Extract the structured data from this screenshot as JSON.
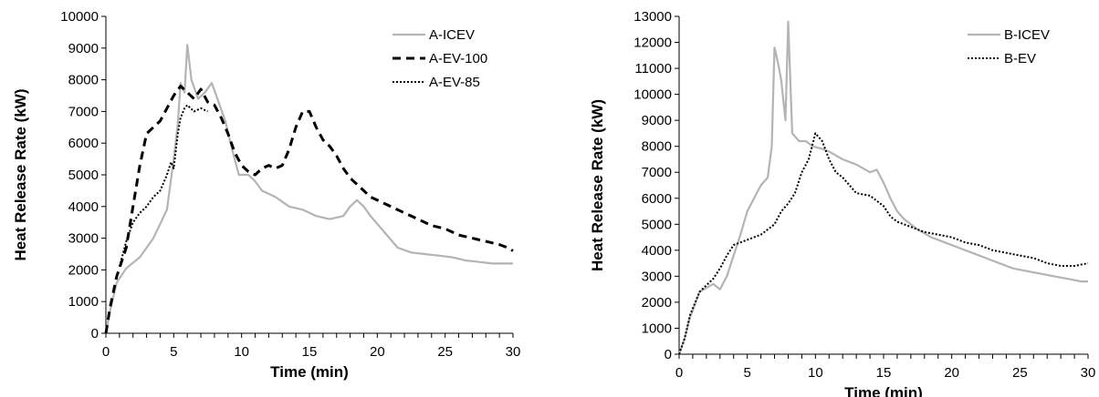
{
  "chart_data": [
    {
      "type": "line",
      "xlabel": "Time (min)",
      "ylabel": "Heat Release Rate (kW)",
      "xlim": [
        0,
        30
      ],
      "ylim": [
        0,
        10000
      ],
      "xticks": [
        0,
        5,
        10,
        15,
        20,
        25,
        30
      ],
      "yticks": [
        0,
        1000,
        2000,
        3000,
        4000,
        5000,
        6000,
        7000,
        8000,
        9000,
        10000
      ],
      "grid": false,
      "legend_position": "top-right",
      "series": [
        {
          "name": "A-ICEV",
          "style": "solid",
          "color": "#b4b4b4",
          "points": [
            [
              0,
              0
            ],
            [
              0.3,
              700
            ],
            [
              0.8,
              1600
            ],
            [
              1.5,
              2050
            ],
            [
              2.5,
              2400
            ],
            [
              3.5,
              3000
            ],
            [
              4.5,
              3900
            ],
            [
              5.0,
              5500
            ],
            [
              5.3,
              6600
            ],
            [
              5.5,
              7900
            ],
            [
              5.8,
              7600
            ],
            [
              6.0,
              9100
            ],
            [
              6.3,
              8000
            ],
            [
              6.8,
              7400
            ],
            [
              7.3,
              7600
            ],
            [
              7.8,
              7900
            ],
            [
              8.3,
              7300
            ],
            [
              8.8,
              6700
            ],
            [
              9.3,
              5800
            ],
            [
              9.8,
              5000
            ],
            [
              10.5,
              5000
            ],
            [
              11.0,
              4800
            ],
            [
              11.5,
              4500
            ],
            [
              12.5,
              4300
            ],
            [
              13.5,
              4000
            ],
            [
              14.5,
              3900
            ],
            [
              15.5,
              3700
            ],
            [
              16.5,
              3600
            ],
            [
              17.5,
              3700
            ],
            [
              18.0,
              4000
            ],
            [
              18.5,
              4200
            ],
            [
              19.0,
              4000
            ],
            [
              19.5,
              3700
            ],
            [
              20.5,
              3200
            ],
            [
              21.5,
              2700
            ],
            [
              22.5,
              2550
            ],
            [
              23.5,
              2500
            ],
            [
              24.5,
              2450
            ],
            [
              25.5,
              2400
            ],
            [
              26.5,
              2300
            ],
            [
              27.5,
              2250
            ],
            [
              28.5,
              2200
            ],
            [
              29.5,
              2200
            ],
            [
              30,
              2200
            ]
          ]
        },
        {
          "name": "A-EV-100",
          "style": "dashed",
          "color": "#000000",
          "points": [
            [
              0,
              0
            ],
            [
              0.3,
              800
            ],
            [
              0.8,
              1800
            ],
            [
              1.5,
              2700
            ],
            [
              2.0,
              4000
            ],
            [
              2.5,
              5300
            ],
            [
              3.0,
              6300
            ],
            [
              3.5,
              6500
            ],
            [
              4.0,
              6700
            ],
            [
              4.5,
              7100
            ],
            [
              5.0,
              7500
            ],
            [
              5.5,
              7800
            ],
            [
              6.0,
              7600
            ],
            [
              6.5,
              7400
            ],
            [
              7.0,
              7700
            ],
            [
              7.5,
              7300
            ],
            [
              8.0,
              7200
            ],
            [
              8.5,
              6800
            ],
            [
              9.0,
              6300
            ],
            [
              9.5,
              5700
            ],
            [
              10.0,
              5300
            ],
            [
              10.5,
              5100
            ],
            [
              11.0,
              5000
            ],
            [
              11.5,
              5200
            ],
            [
              12.0,
              5300
            ],
            [
              12.5,
              5200
            ],
            [
              13.0,
              5300
            ],
            [
              13.5,
              5800
            ],
            [
              14.0,
              6500
            ],
            [
              14.5,
              7000
            ],
            [
              15.0,
              7000
            ],
            [
              15.5,
              6500
            ],
            [
              16.0,
              6100
            ],
            [
              16.5,
              5900
            ],
            [
              17.0,
              5600
            ],
            [
              17.5,
              5200
            ],
            [
              18.0,
              4900
            ],
            [
              18.5,
              4700
            ],
            [
              19.0,
              4500
            ],
            [
              19.5,
              4300
            ],
            [
              20.0,
              4200
            ],
            [
              21.0,
              4000
            ],
            [
              22.0,
              3800
            ],
            [
              23.0,
              3600
            ],
            [
              24.0,
              3400
            ],
            [
              25.0,
              3300
            ],
            [
              26.0,
              3100
            ],
            [
              27.0,
              3000
            ],
            [
              28.0,
              2900
            ],
            [
              29.0,
              2800
            ],
            [
              29.6,
              2700
            ],
            [
              30,
              2600
            ]
          ]
        },
        {
          "name": "A-EV-85",
          "style": "dotted",
          "color": "#000000",
          "points": [
            [
              1.0,
              2100
            ],
            [
              1.5,
              2900
            ],
            [
              2.0,
              3500
            ],
            [
              2.5,
              3800
            ],
            [
              3.0,
              4000
            ],
            [
              3.5,
              4300
            ],
            [
              4.0,
              4500
            ],
            [
              4.5,
              5000
            ],
            [
              4.8,
              5400
            ],
            [
              5.0,
              5200
            ],
            [
              5.3,
              6300
            ],
            [
              5.5,
              6800
            ],
            [
              5.8,
              7100
            ],
            [
              6.0,
              7200
            ],
            [
              6.5,
              7000
            ],
            [
              7.0,
              7100
            ],
            [
              7.5,
              7000
            ]
          ]
        }
      ]
    },
    {
      "type": "line",
      "xlabel": "Time (min)",
      "ylabel": "Heat Release Rate (kW)",
      "xlim": [
        0,
        30
      ],
      "ylim": [
        0,
        13000
      ],
      "xticks": [
        0,
        5,
        10,
        15,
        20,
        25,
        30
      ],
      "yticks": [
        0,
        1000,
        2000,
        3000,
        4000,
        5000,
        6000,
        7000,
        8000,
        9000,
        10000,
        11000,
        12000,
        13000
      ],
      "grid": false,
      "legend_position": "top-right",
      "series": [
        {
          "name": "B-ICEV",
          "style": "solid",
          "color": "#b4b4b4",
          "points": [
            [
              0,
              0
            ],
            [
              0.4,
              600
            ],
            [
              0.8,
              1400
            ],
            [
              1.5,
              2400
            ],
            [
              2.5,
              2700
            ],
            [
              3.0,
              2500
            ],
            [
              3.5,
              3000
            ],
            [
              4.0,
              3800
            ],
            [
              4.5,
              4600
            ],
            [
              5.0,
              5500
            ],
            [
              5.5,
              6000
            ],
            [
              6.0,
              6500
            ],
            [
              6.5,
              6800
            ],
            [
              6.8,
              8000
            ],
            [
              7.0,
              11800
            ],
            [
              7.3,
              11100
            ],
            [
              7.5,
              10500
            ],
            [
              7.8,
              9000
            ],
            [
              8.0,
              12800
            ],
            [
              8.3,
              8500
            ],
            [
              8.8,
              8200
            ],
            [
              9.3,
              8200
            ],
            [
              9.8,
              8000
            ],
            [
              10.5,
              7900
            ],
            [
              11.0,
              7800
            ],
            [
              12.0,
              7500
            ],
            [
              13.0,
              7300
            ],
            [
              14.0,
              7000
            ],
            [
              14.5,
              7100
            ],
            [
              15.0,
              6600
            ],
            [
              15.5,
              6000
            ],
            [
              16.0,
              5500
            ],
            [
              16.5,
              5200
            ],
            [
              17.5,
              4800
            ],
            [
              18.5,
              4500
            ],
            [
              19.5,
              4300
            ],
            [
              20.5,
              4100
            ],
            [
              21.5,
              3900
            ],
            [
              22.5,
              3700
            ],
            [
              23.5,
              3500
            ],
            [
              24.5,
              3300
            ],
            [
              25.5,
              3200
            ],
            [
              26.5,
              3100
            ],
            [
              27.5,
              3000
            ],
            [
              28.5,
              2900
            ],
            [
              29.5,
              2800
            ],
            [
              30,
              2800
            ]
          ]
        },
        {
          "name": "B-EV",
          "style": "dotted",
          "color": "#000000",
          "points": [
            [
              0,
              0
            ],
            [
              0.4,
              600
            ],
            [
              0.8,
              1500
            ],
            [
              1.5,
              2400
            ],
            [
              2.5,
              2900
            ],
            [
              3.0,
              3300
            ],
            [
              3.5,
              3800
            ],
            [
              4.0,
              4200
            ],
            [
              4.5,
              4300
            ],
            [
              5.0,
              4400
            ],
            [
              5.5,
              4500
            ],
            [
              6.0,
              4600
            ],
            [
              6.5,
              4800
            ],
            [
              7.0,
              5000
            ],
            [
              7.5,
              5500
            ],
            [
              8.0,
              5800
            ],
            [
              8.5,
              6200
            ],
            [
              9.0,
              7000
            ],
            [
              9.5,
              7500
            ],
            [
              10.0,
              8500
            ],
            [
              10.5,
              8200
            ],
            [
              11.0,
              7500
            ],
            [
              11.5,
              7000
            ],
            [
              12.0,
              6800
            ],
            [
              12.5,
              6500
            ],
            [
              13.0,
              6200
            ],
            [
              14.0,
              6100
            ],
            [
              14.5,
              5900
            ],
            [
              15.0,
              5700
            ],
            [
              15.5,
              5300
            ],
            [
              16.0,
              5100
            ],
            [
              17.0,
              4900
            ],
            [
              18.0,
              4700
            ],
            [
              19.0,
              4600
            ],
            [
              20.0,
              4500
            ],
            [
              21.0,
              4300
            ],
            [
              22.0,
              4200
            ],
            [
              23.0,
              4000
            ],
            [
              24.0,
              3900
            ],
            [
              25.0,
              3800
            ],
            [
              26.0,
              3700
            ],
            [
              27.0,
              3500
            ],
            [
              28.0,
              3400
            ],
            [
              29.0,
              3400
            ],
            [
              30,
              3500
            ]
          ]
        }
      ]
    }
  ]
}
